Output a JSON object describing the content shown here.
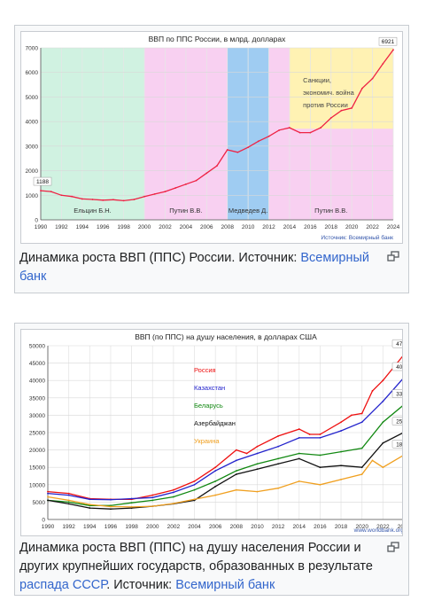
{
  "figure1": {
    "caption_text": "Динамика роста ВВП (ППС) России. Источник: ",
    "caption_link": "Всемирный банк",
    "magnify_icon": "enlarge-icon",
    "chart_data": {
      "type": "line",
      "title": "ВВП по ППС России, в млрд. долларах",
      "source_label": "Источник: Всемирный банк",
      "ylim": [
        0,
        7000
      ],
      "yticks": [
        0,
        1000,
        2000,
        3000,
        4000,
        5000,
        6000,
        7000
      ],
      "xlim": [
        1990,
        2024
      ],
      "xticks": [
        1990,
        1992,
        1994,
        1996,
        1998,
        2000,
        2002,
        2004,
        2006,
        2008,
        2010,
        2012,
        2014,
        2016,
        2018,
        2020,
        2022,
        2024
      ],
      "grid": true,
      "periods": [
        {
          "label": "Ельцин Б.Н.",
          "from": 1990,
          "to": 2000,
          "color": "#c8f0dc"
        },
        {
          "label": "Путин В.В.",
          "from": 2000,
          "to": 2008,
          "color": "#f7c8ee"
        },
        {
          "label": "Медведев Д.",
          "from": 2008,
          "to": 2012,
          "color": "#8ec3f0"
        },
        {
          "label": "Путин В.В.",
          "from": 2012,
          "to": 2024,
          "color": "#f7c8ee"
        }
      ],
      "annotation": {
        "text": [
          "Санкции,",
          "экономич. война",
          "против России"
        ],
        "from": 2014,
        "to": 2024,
        "color": "#fff2b3"
      },
      "start_label": "1188",
      "end_label": "6921",
      "series": [
        {
          "color": "#ee2244",
          "x": [
            1990,
            1991,
            1992,
            1993,
            1994,
            1995,
            1996,
            1997,
            1998,
            1999,
            2000,
            2001,
            2002,
            2003,
            2004,
            2005,
            2006,
            2007,
            2008,
            2009,
            2010,
            2011,
            2012,
            2013,
            2014,
            2015,
            2016,
            2017,
            2018,
            2019,
            2020,
            2021,
            2022,
            2023,
            2024
          ],
          "values": [
            1188,
            1150,
            1000,
            950,
            850,
            830,
            800,
            820,
            780,
            830,
            950,
            1050,
            1150,
            1300,
            1450,
            1600,
            1900,
            2200,
            2850,
            2750,
            2950,
            3200,
            3400,
            3650,
            3750,
            3550,
            3550,
            3750,
            4150,
            4450,
            4550,
            5350,
            5750,
            6350,
            6921
          ]
        }
      ]
    }
  },
  "figure2": {
    "caption_text": "Динамика роста ВВП (ППС) на душу населения России и других крупнейших государств, образованных в результате ",
    "caption_link1": "распада СССР",
    "caption_text2": ". Источник: ",
    "caption_link2": "Всемирный банк",
    "magnify_icon": "enlarge-icon",
    "chart_data": {
      "type": "line",
      "title": "ВВП (по ППС) на душу населения, в долларах США",
      "source_label": "www.worldbank.org",
      "ylim": [
        0,
        50000
      ],
      "yticks": [
        0,
        5000,
        10000,
        15000,
        20000,
        25000,
        30000,
        35000,
        40000,
        45000,
        50000
      ],
      "xlim": [
        1990,
        2024
      ],
      "xticks": [
        1990,
        1992,
        1994,
        1996,
        1998,
        2000,
        2002,
        2004,
        2006,
        2008,
        2010,
        2012,
        2014,
        2016,
        2018,
        2020,
        2022,
        2024
      ],
      "grid": true,
      "legend_position": "top-left",
      "series": [
        {
          "name": "Россия",
          "color": "#ee1111",
          "end_label": "47405",
          "x": [
            1990,
            1992,
            1994,
            1996,
            1998,
            2000,
            2002,
            2004,
            2006,
            2008,
            2009,
            2010,
            2012,
            2014,
            2015,
            2016,
            2018,
            2019,
            2020,
            2021,
            2022,
            2024
          ],
          "values": [
            8000,
            7500,
            6000,
            5800,
            5800,
            7000,
            8500,
            11000,
            15000,
            20000,
            19000,
            21000,
            24000,
            26000,
            24500,
            24500,
            28000,
            30000,
            30500,
            37000,
            40000,
            47405
          ]
        },
        {
          "name": "Казахстан",
          "color": "#2222cc",
          "end_label": "40813",
          "x": [
            1990,
            1992,
            1994,
            1996,
            1998,
            2000,
            2002,
            2004,
            2006,
            2008,
            2010,
            2012,
            2014,
            2016,
            2018,
            2020,
            2022,
            2024
          ],
          "values": [
            7500,
            7000,
            5800,
            5700,
            6000,
            6300,
            7800,
            10000,
            14000,
            17000,
            19000,
            21000,
            23500,
            23500,
            25500,
            28000,
            34000,
            40813
          ]
        },
        {
          "name": "Беларусь",
          "color": "#118811",
          "end_label": "33006",
          "x": [
            1990,
            1992,
            1994,
            1996,
            1998,
            2000,
            2002,
            2004,
            2006,
            2008,
            2010,
            2012,
            2014,
            2016,
            2018,
            2020,
            2022,
            2024
          ],
          "values": [
            5500,
            5000,
            4000,
            4000,
            4800,
            5500,
            6500,
            8500,
            11000,
            14000,
            16000,
            17500,
            19000,
            18500,
            19500,
            20500,
            28000,
            33006
          ]
        },
        {
          "name": "Азербайджан",
          "color": "#111111",
          "end_label": "25089",
          "x": [
            1990,
            1992,
            1994,
            1996,
            1998,
            2000,
            2002,
            2004,
            2006,
            2008,
            2010,
            2012,
            2014,
            2016,
            2018,
            2020,
            2022,
            2024
          ],
          "values": [
            5500,
            4500,
            3300,
            3000,
            3300,
            3800,
            4500,
            5500,
            9500,
            13000,
            14500,
            16000,
            17500,
            15000,
            15500,
            15000,
            22000,
            25089
          ]
        },
        {
          "name": "Украина",
          "color": "#f0a020",
          "end_label": "18550",
          "x": [
            1990,
            1992,
            1994,
            1996,
            1998,
            2000,
            2002,
            2004,
            2006,
            2008,
            2010,
            2012,
            2014,
            2016,
            2018,
            2020,
            2021,
            2022,
            2024
          ],
          "values": [
            6500,
            5500,
            4300,
            3700,
            3600,
            3800,
            4600,
            5800,
            7000,
            8500,
            8000,
            9000,
            11000,
            10000,
            11500,
            13000,
            17000,
            15000,
            18550
          ]
        }
      ]
    }
  }
}
